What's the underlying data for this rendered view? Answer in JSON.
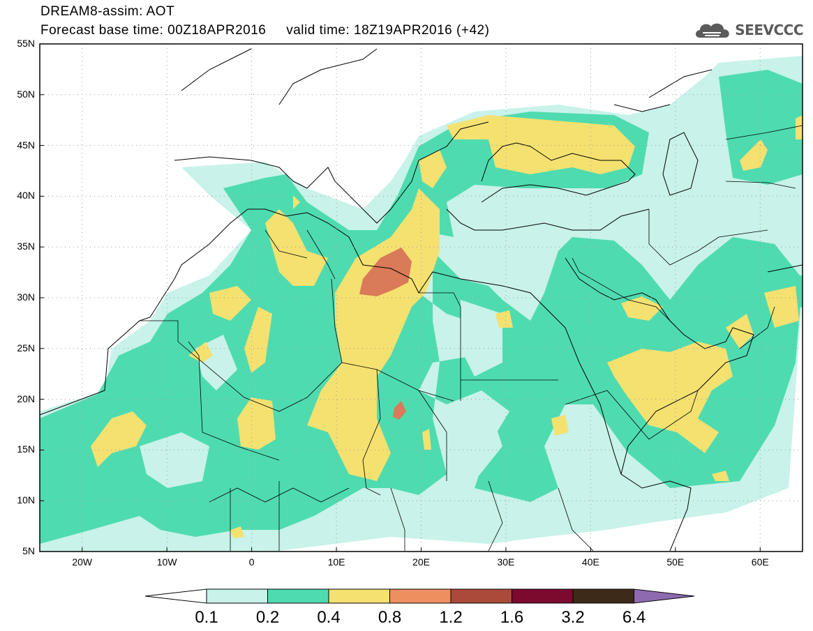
{
  "header": {
    "title_line1": "DREAM8-assim: AOT",
    "title_line2": "Forecast base time: 00Z18APR2016     valid time: 18Z19APR2016 (+42)",
    "logo_text": "SEEVCCC"
  },
  "map": {
    "lon_range": [
      -25,
      65
    ],
    "lat_range": [
      5,
      55
    ],
    "y_ticks": [
      {
        "lat": 55,
        "label": "55N"
      },
      {
        "lat": 50,
        "label": "50N"
      },
      {
        "lat": 45,
        "label": "45N"
      },
      {
        "lat": 40,
        "label": "40N"
      },
      {
        "lat": 35,
        "label": "35N"
      },
      {
        "lat": 30,
        "label": "30N"
      },
      {
        "lat": 25,
        "label": "25N"
      },
      {
        "lat": 20,
        "label": "20N"
      },
      {
        "lat": 15,
        "label": "15N"
      },
      {
        "lat": 10,
        "label": "10N"
      },
      {
        "lat": 5,
        "label": "5N"
      }
    ],
    "x_ticks": [
      {
        "lon": -20,
        "label": "20W"
      },
      {
        "lon": -10,
        "label": "10W"
      },
      {
        "lon": 0,
        "label": "0"
      },
      {
        "lon": 10,
        "label": "10E"
      },
      {
        "lon": 20,
        "label": "20E"
      },
      {
        "lon": 30,
        "label": "30E"
      },
      {
        "lon": 40,
        "label": "40E"
      },
      {
        "lon": 50,
        "label": "50E"
      },
      {
        "lon": 60,
        "label": "60E"
      }
    ]
  },
  "colorbar": {
    "labels": [
      "0.1",
      "0.2",
      "0.4",
      "0.8",
      "1.2",
      "1.6",
      "3.2",
      "6.4"
    ],
    "colors": [
      "#c8f2ea",
      "#4fdbb0",
      "#f4e170",
      "#ee8f60",
      "#ab4a3a",
      "#7c0a2e",
      "#3e2a18"
    ],
    "under_color": "#ffffff",
    "over_color": "#8e6bb0"
  },
  "colors": {
    "lvl1": "#c8f2ea",
    "lvl2": "#4fdbb0",
    "lvl3": "#f4e170",
    "lvl4": "#ee8f60",
    "lvl5": "#d97a58"
  }
}
